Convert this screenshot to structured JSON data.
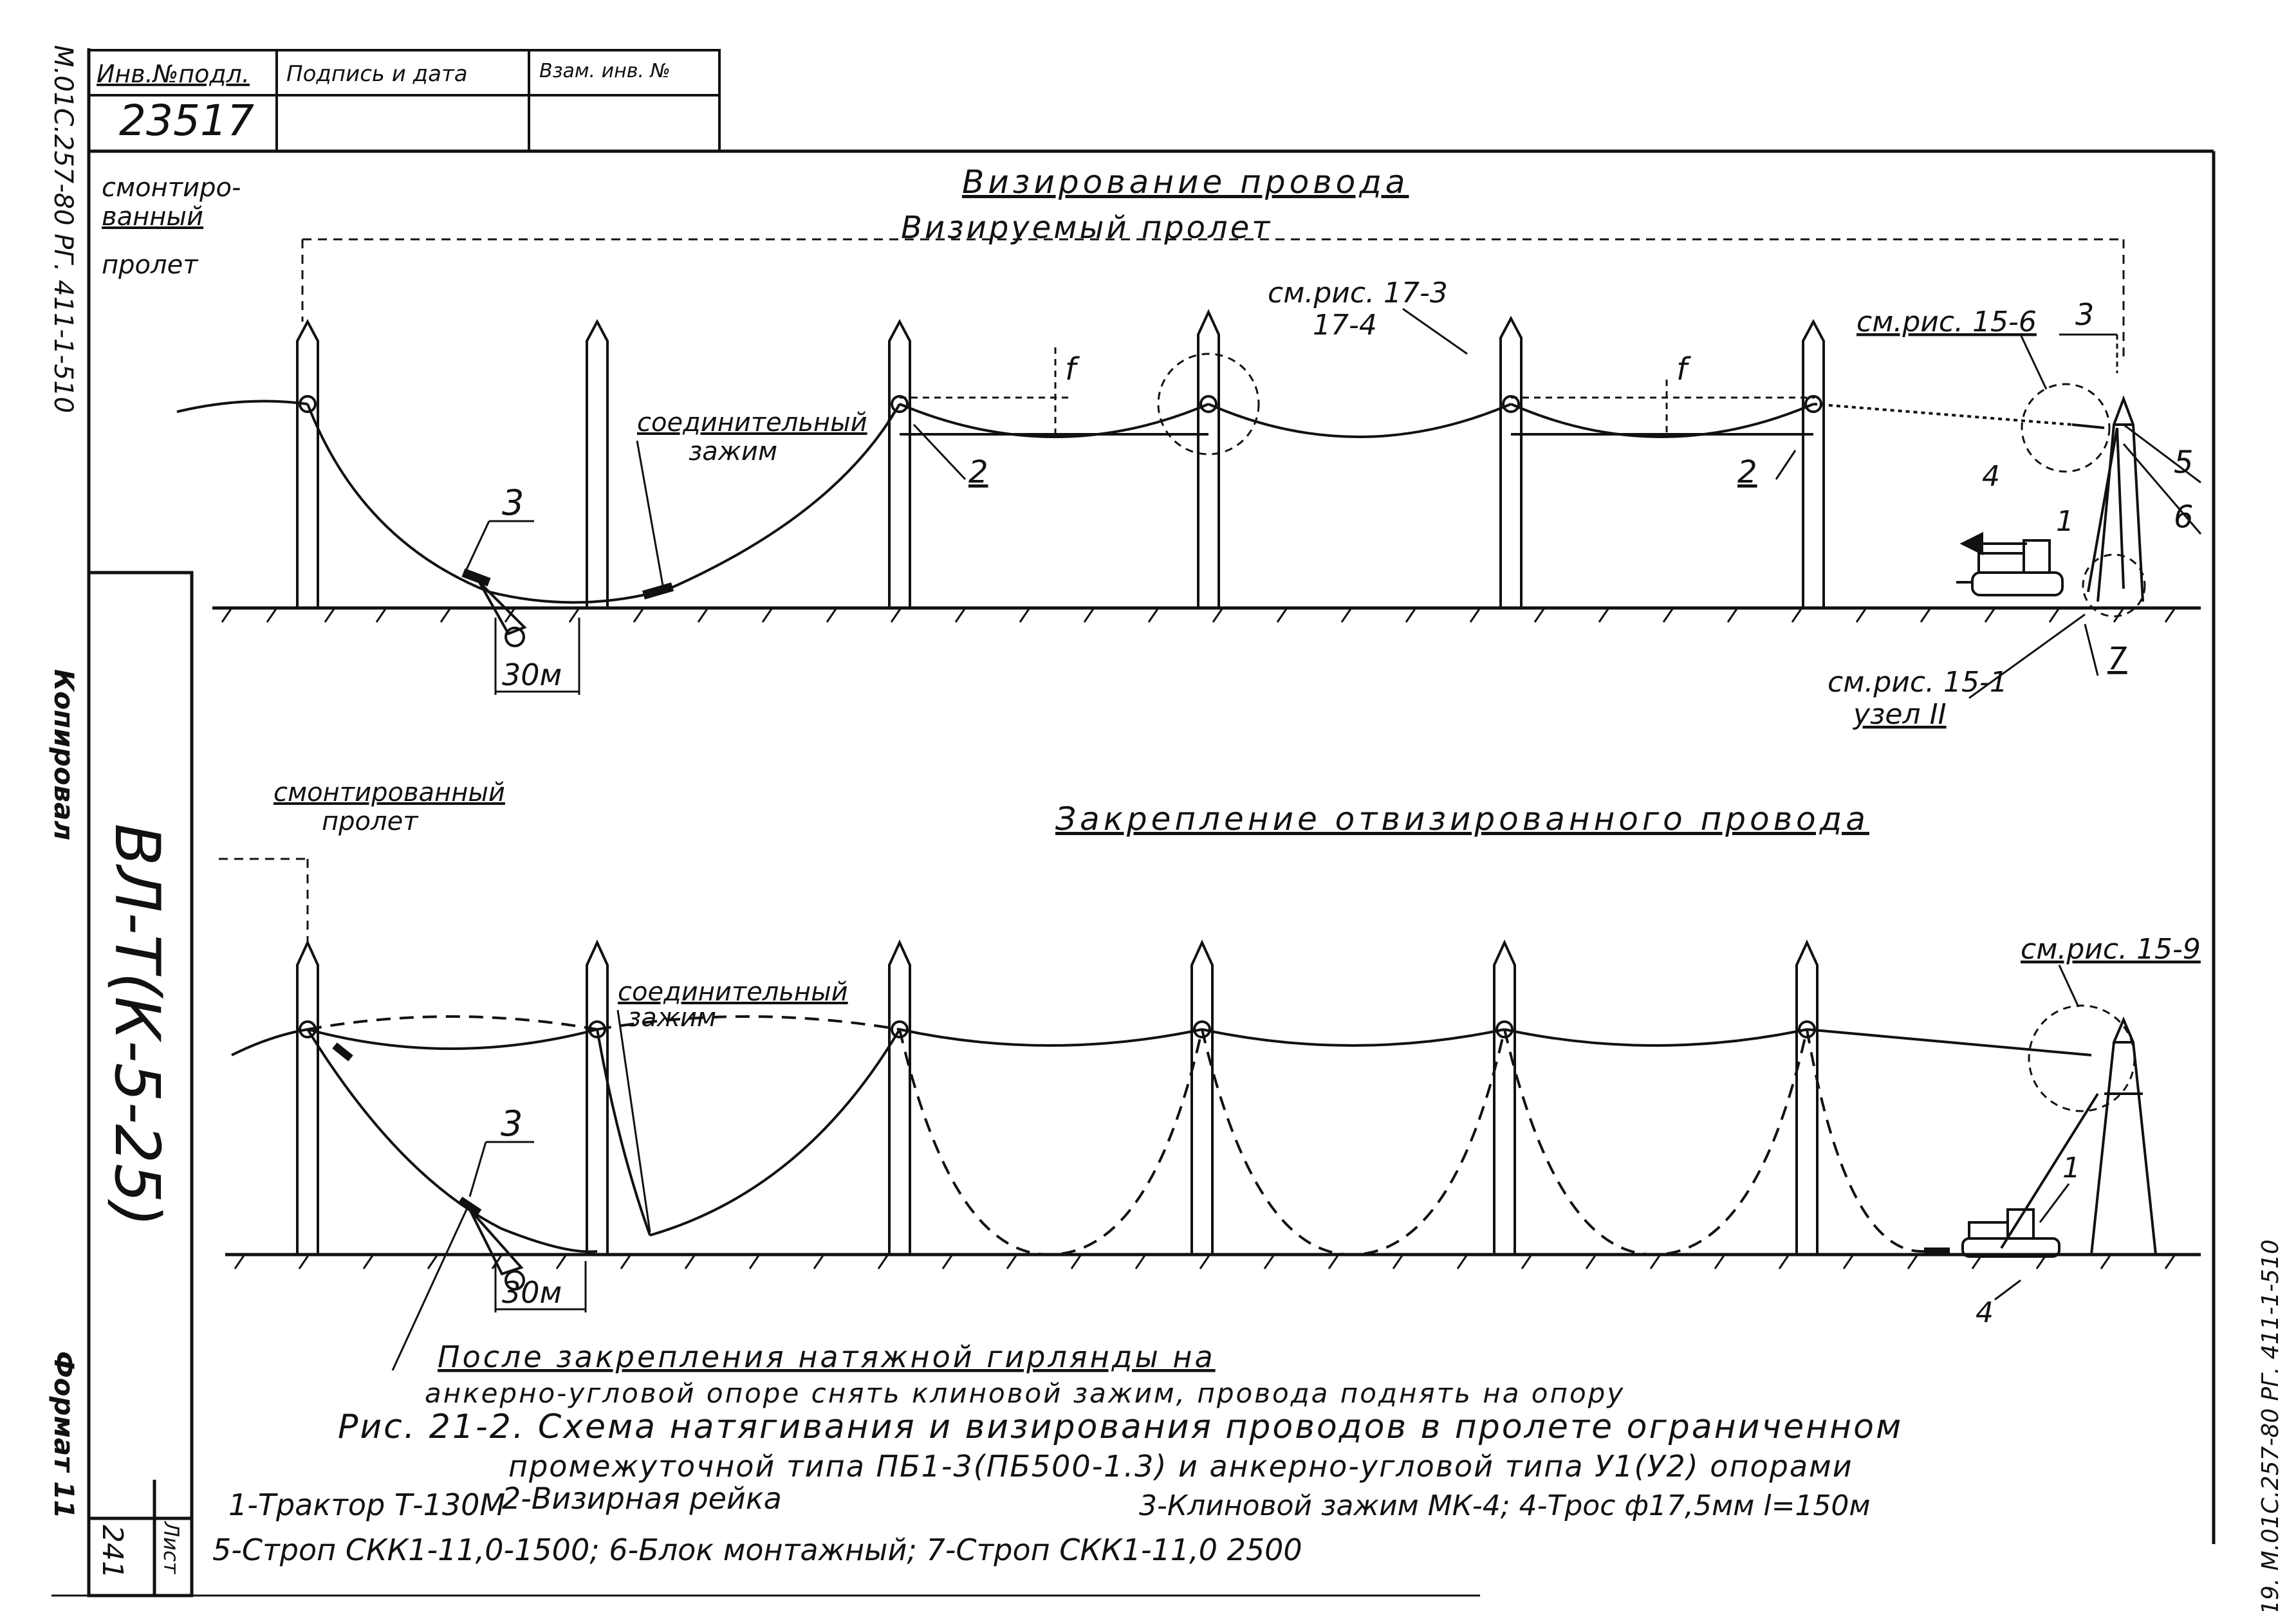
{
  "stamp": {
    "inv_header": "Инв.№подл.",
    "inv_number": "23517",
    "sign_header": "Подпись и дата",
    "vzam_header": "Взам. инв. №"
  },
  "margin": {
    "top_code": "М.01С.257-80 РГ. 411-1-510",
    "copy_label": "Копировал",
    "series": "ВЛ-Т(К-5-25)",
    "format": "Формат 11",
    "sheet_label": "Лист",
    "sheet_number": "241",
    "right_code": "19. М.01С.257-80 РГ. 411-1-510"
  },
  "top": {
    "title": "Визирование провода",
    "sighted_span": "Визируемый пролет",
    "mounted_span_1": "смонтиро-",
    "mounted_span_2": "ванный",
    "mounted_span_3": "пролет",
    "connector_1": "соединительный",
    "connector_2": "зажим",
    "distance": "30м",
    "ref_17_3": "см.рис. 17-3",
    "ref_17_4": "17-4",
    "ref_15_6": "см.рис. 15-6",
    "ref_15_1": "см.рис. 15-1",
    "node": "узел II",
    "sag": "f",
    "n1": "1",
    "n2": "2",
    "n3": "3",
    "n4": "4",
    "n5": "5",
    "n6": "6",
    "n7": "7"
  },
  "bottom": {
    "title": "Закрепление отвизированного провода",
    "mounted_span_1": "смонтированный",
    "mounted_span_2": "пролет",
    "connector_1": "соединительный",
    "connector_2": "зажим",
    "distance": "30м",
    "ref_15_9": "см.рис. 15-9",
    "n1": "1",
    "n3": "3",
    "n4": "4"
  },
  "notes": {
    "line1": "После закрепления натяжной гирлянды на",
    "line2": "анкерно-угловой опоре снять клиновой зажим, провода поднять на опору",
    "caption1": "Рис. 21-2. Схема натягивания и визирования проводов в пролете ограниченном",
    "caption2": "промежуточной типа ПБ1-3(ПБ500-1.3) и анкерно-угловой типа У1(У2) опорами",
    "legend1a": "1-Трактор Т-130М",
    "legend1b": "2-Визирная рейка",
    "legend1c": "3-Клиновой зажим МК-4; 4-Трос ф17,5мм  l=150м",
    "legend2": "5-Строп СКК1-11,0-1500; 6-Блок монтажный; 7-Строп СКК1-11,0 2500"
  }
}
